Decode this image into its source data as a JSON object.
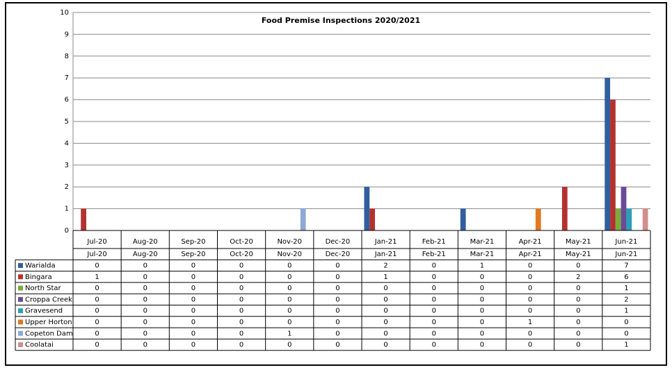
{
  "chart_data": {
    "type": "bar",
    "title": "Food Premise Inspections 2020/2021",
    "categories": [
      "Jul-20",
      "Aug-20",
      "Sep-20",
      "Oct-20",
      "Nov-20",
      "Dec-20",
      "Jan-21",
      "Feb-21",
      "Mar-21",
      "Apr-21",
      "May-21",
      "Jun-21"
    ],
    "series": [
      {
        "name": "Warialda",
        "color": "#2f5f9e",
        "values": [
          0,
          0,
          0,
          0,
          0,
          0,
          2,
          0,
          1,
          0,
          0,
          7
        ]
      },
      {
        "name": "Bingara",
        "color": "#b3322f",
        "values": [
          1,
          0,
          0,
          0,
          0,
          0,
          1,
          0,
          0,
          0,
          2,
          6
        ]
      },
      {
        "name": "North Star",
        "color": "#7cab3c",
        "values": [
          0,
          0,
          0,
          0,
          0,
          0,
          0,
          0,
          0,
          0,
          0,
          1
        ]
      },
      {
        "name": "Croppa Creek",
        "color": "#6a4b98",
        "values": [
          0,
          0,
          0,
          0,
          0,
          0,
          0,
          0,
          0,
          0,
          0,
          2
        ]
      },
      {
        "name": "Gravesend",
        "color": "#2b9fb8",
        "values": [
          0,
          0,
          0,
          0,
          0,
          0,
          0,
          0,
          0,
          0,
          0,
          1
        ]
      },
      {
        "name": "Upper Horton",
        "color": "#e0791f",
        "values": [
          0,
          0,
          0,
          0,
          0,
          0,
          0,
          0,
          0,
          1,
          0,
          0
        ]
      },
      {
        "name": "Copeton Dam",
        "color": "#8da9d6",
        "values": [
          0,
          0,
          0,
          0,
          1,
          0,
          0,
          0,
          0,
          0,
          0,
          0
        ]
      },
      {
        "name": "Coolatai",
        "color": "#d28e8c",
        "values": [
          0,
          0,
          0,
          0,
          0,
          0,
          0,
          0,
          0,
          0,
          0,
          1
        ]
      }
    ],
    "ylim": [
      0,
      10
    ],
    "yticks": [
      0,
      1,
      2,
      3,
      4,
      5,
      6,
      7,
      8,
      9,
      10
    ],
    "grid": true
  }
}
